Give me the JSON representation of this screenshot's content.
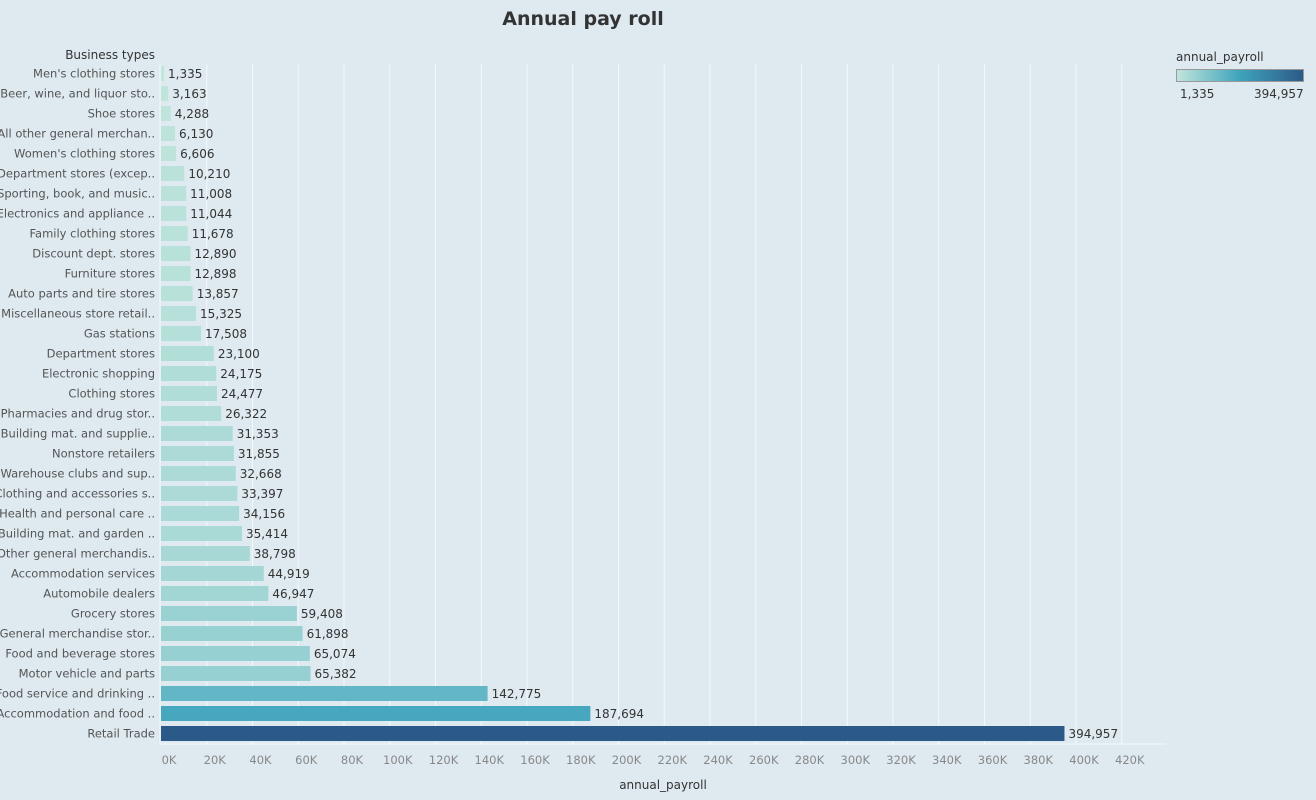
{
  "chart_data": {
    "type": "bar",
    "orientation": "horizontal",
    "title": "Annual pay roll",
    "ylabel": "Business types",
    "xlabel": "annual_payroll",
    "xlim": [
      0,
      440000
    ],
    "x_tick_labels": [
      "0K",
      "20K",
      "40K",
      "60K",
      "80K",
      "100K",
      "120K",
      "140K",
      "160K",
      "180K",
      "200K",
      "220K",
      "240K",
      "260K",
      "280K",
      "300K",
      "320K",
      "340K",
      "360K",
      "380K",
      "400K",
      "420K"
    ],
    "x_tick_values": [
      0,
      20000,
      40000,
      60000,
      80000,
      100000,
      120000,
      140000,
      160000,
      180000,
      200000,
      220000,
      240000,
      260000,
      280000,
      300000,
      320000,
      340000,
      360000,
      380000,
      400000,
      420000
    ],
    "grid": "vertical",
    "categories": [
      "Men's clothing stores",
      "Beer, wine, and liquor sto..",
      "Shoe stores",
      "All other general merchan..",
      "Women's clothing stores",
      "Department stores (excep..",
      "Sporting, book, and  music..",
      "Electronics and appliance ..",
      "Family clothing stores",
      "Discount dept. stores",
      "Furniture stores",
      "Auto parts and tire stores",
      "Miscellaneous store retail..",
      "Gas stations",
      "Department stores",
      "Electronic shopping",
      "Clothing stores",
      "Pharmacies and drug stor..",
      "Building mat. and supplie..",
      "Nonstore retailers",
      "Warehouse clubs and sup..",
      "Clothing and accessories s..",
      "Health and personal care ..",
      "Building mat. and garden ..",
      "Other general merchandis..",
      "Accommodation services",
      "Automobile dealers",
      "Grocery stores",
      "General merchandise stor..",
      "Food and beverage stores",
      "Motor vehicle and parts",
      "Food service and drinking ..",
      "Accommodation and food ..",
      "Retail Trade"
    ],
    "values": [
      1335,
      3163,
      4288,
      6130,
      6606,
      10210,
      11008,
      11044,
      11678,
      12890,
      12898,
      13857,
      15325,
      17508,
      23100,
      24175,
      24477,
      26322,
      31353,
      31855,
      32668,
      33397,
      34156,
      35414,
      38798,
      44919,
      46947,
      59408,
      61898,
      65074,
      65382,
      142775,
      187694,
      394957
    ],
    "value_labels": [
      "1,335",
      "3,163",
      "4,288",
      "6,130",
      "6,606",
      "10,210",
      "11,008",
      "11,044",
      "11,678",
      "12,890",
      "12,898",
      "13,857",
      "15,325",
      "17,508",
      "23,100",
      "24,175",
      "24,477",
      "26,322",
      "31,353",
      "31,855",
      "32,668",
      "33,397",
      "34,156",
      "35,414",
      "38,798",
      "44,919",
      "46,947",
      "59,408",
      "61,898",
      "65,074",
      "65,382",
      "142,775",
      "187,694",
      "394,957"
    ],
    "color_scale": {
      "low": "#c0e5dc",
      "mid": "#3fa3bc",
      "high": "#2c5a88"
    },
    "legend": {
      "title": "annual_payroll",
      "min_label": "1,335",
      "max_label": "394,957",
      "placement": "top-right"
    }
  }
}
